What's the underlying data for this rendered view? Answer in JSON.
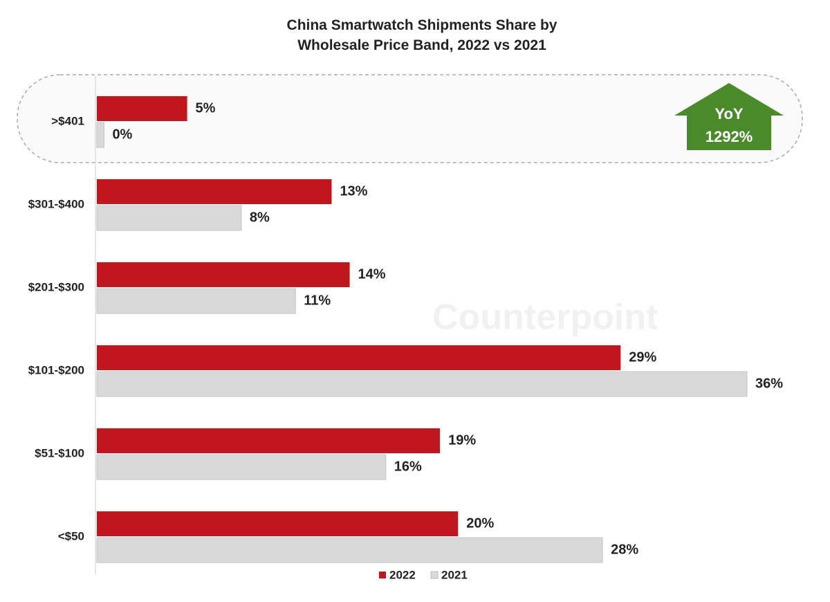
{
  "chart_data": {
    "type": "hbar",
    "title": "China Smartwatch Shipments Share by Wholesale Price Band, 2022 vs 2021",
    "categories": [
      ">$401",
      "$301-$400",
      "$201-$300",
      "$101-$200",
      "$51-$100",
      "<$50"
    ],
    "series": [
      {
        "name": "2022",
        "color": "#c0171f",
        "values": [
          5,
          13,
          14,
          29,
          19,
          20
        ],
        "value_labels": [
          "5%",
          "13%",
          "14%",
          "29%",
          "19%",
          "20%"
        ]
      },
      {
        "name": "2021",
        "color": "#d9d9d9",
        "values": [
          0.4,
          8,
          11,
          36,
          16,
          28
        ],
        "value_labels": [
          "0%",
          "8%",
          "11%",
          "36%",
          "16%",
          "28%"
        ]
      }
    ],
    "xlim": [
      0,
      36
    ],
    "annotation": {
      "lines": [
        "YoY",
        "1292%"
      ],
      "color": "#4a8a2a"
    },
    "watermark": "Counterpoint",
    "legend": "bottom"
  }
}
